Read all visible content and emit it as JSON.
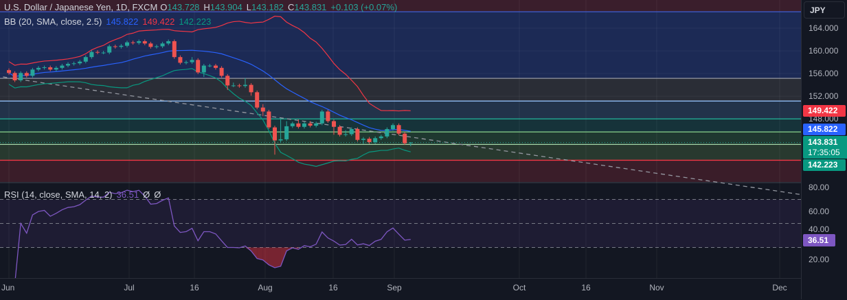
{
  "header": {
    "symbol": "U.S. Dollar / Japanese Yen, 1D, FXCM",
    "o_label": "O",
    "o": "143.728",
    "h_label": "H",
    "h": "143.904",
    "l_label": "L",
    "l": "143.182",
    "c_label": "C",
    "c": "143.831",
    "change": "+0.103 (+0.07%)"
  },
  "bb_legend": {
    "label": "BB (20, SMA, close, 2.5)",
    "basis": "145.822",
    "upper": "149.422",
    "lower": "142.223"
  },
  "rsi_legend": {
    "label": "RSI (14, close, SMA, 14, 2)",
    "value": "36.51",
    "ma1": "Ø",
    "ma2": "Ø"
  },
  "price_axis": {
    "currency": "JPY",
    "ticks": [
      "164.000",
      "160.000",
      "156.000",
      "152.000",
      "148.000"
    ],
    "tags": {
      "upper": "149.422",
      "basis": "145.822",
      "last": "143.831",
      "countdown": "17:35:05",
      "lower": "142.223"
    }
  },
  "rsi_axis": {
    "ticks": [
      "80.00",
      "60.00",
      "40.00",
      "20.00"
    ],
    "tag": "36.51"
  },
  "time_axis": {
    "ticks": [
      "Jun",
      "Jul",
      "16",
      "Aug",
      "16",
      "Sep",
      "Oct",
      "16",
      "Nov",
      "Dec"
    ]
  },
  "colors": {
    "up": "#26a69a",
    "down": "#ef5350",
    "basis": "#2962ff",
    "upper": "#f23645",
    "lower": "#089981",
    "rsi": "#7e57c2"
  },
  "chart_data": {
    "type": "candlestick",
    "title": "U.S. Dollar / Japanese Yen, 1D, FXCM",
    "ylim": [
      136.76,
      168.97
    ],
    "rsi_ylim": [
      4.6,
      84
    ],
    "rsi_levels": [
      70,
      50,
      30
    ],
    "levels": [
      {
        "price": 166.9,
        "color": "#3f5ed4"
      },
      {
        "price": 155.15,
        "color": "#9598a1"
      },
      {
        "price": 151.15,
        "color": "#90bff9"
      },
      {
        "price": 148.0,
        "color": "#22ab94"
      },
      {
        "price": 145.7,
        "color": "#81c784"
      },
      {
        "price": 143.5,
        "color": "#a5d6a7"
      },
      {
        "price": 140.7,
        "color": "#f23645"
      }
    ],
    "zones": [
      {
        "from": 166.9,
        "to": 168.97,
        "color": "#3a1e2c"
      },
      {
        "from": 155.15,
        "to": 166.9,
        "color": "#1c2a55"
      },
      {
        "from": 151.15,
        "to": 155.15,
        "color": "#2a2d36"
      },
      {
        "from": 148.0,
        "to": 151.15,
        "color": "#22334a"
      },
      {
        "from": 145.7,
        "to": 148.0,
        "color": "#16333a"
      },
      {
        "from": 143.5,
        "to": 145.7,
        "color": "#1f3830"
      },
      {
        "from": 140.7,
        "to": 143.5,
        "color": "#28392f"
      },
      {
        "from": 136.76,
        "to": 140.7,
        "color": "#3a1d29"
      }
    ],
    "trendline": {
      "start_bar": -1,
      "start_price": 155.4,
      "slope_per_bar": -0.1536,
      "color": "#9598a1"
    },
    "o": [
      156.6,
      156.1,
      154.8,
      156.1,
      155.6,
      156.7,
      157.0,
      157.1,
      156.7,
      157.0,
      157.4,
      157.7,
      157.8,
      158.1,
      158.9,
      159.8,
      159.7,
      159.7,
      160.8,
      160.7,
      160.9,
      161.5,
      161.4,
      161.7,
      161.3,
      160.7,
      160.8,
      161.3,
      161.7,
      158.9,
      157.9,
      158.0,
      158.4,
      156.2,
      157.4,
      157.4,
      157.0,
      155.6,
      153.9,
      153.9,
      153.8,
      154.0,
      152.7,
      150.0,
      149.3,
      146.5,
      144.2,
      144.4,
      146.7,
      147.2,
      146.6,
      147.2,
      146.8,
      147.2,
      149.3,
      147.6,
      146.6,
      145.2,
      145.3,
      146.2,
      144.3,
      144.5,
      143.9,
      144.6,
      144.9,
      146.2,
      146.9,
      145.4,
      143.728
    ],
    "h": [
      156.9,
      156.4,
      156.4,
      156.4,
      157.0,
      157.3,
      157.4,
      157.4,
      157.3,
      157.7,
      158.0,
      158.1,
      158.4,
      159.2,
      160.1,
      160.1,
      160.0,
      161.1,
      161.1,
      161.2,
      161.8,
      161.8,
      162.0,
      162.0,
      161.6,
      161.1,
      161.6,
      162.0,
      162.0,
      159.2,
      158.3,
      158.9,
      158.7,
      157.7,
      157.7,
      157.7,
      157.3,
      155.9,
      154.4,
      154.2,
      155.2,
      154.3,
      153.0,
      150.6,
      149.6,
      146.8,
      147.9,
      147.6,
      147.5,
      147.9,
      147.5,
      147.6,
      147.5,
      149.6,
      149.6,
      147.9,
      146.9,
      146.0,
      146.5,
      146.5,
      144.8,
      144.8,
      144.9,
      145.2,
      146.5,
      147.2,
      147.2,
      145.7,
      143.904
    ],
    "l": [
      155.8,
      154.5,
      154.5,
      155.3,
      155.3,
      156.4,
      156.7,
      156.4,
      156.4,
      156.7,
      157.1,
      157.4,
      157.5,
      157.8,
      158.6,
      159.4,
      159.4,
      159.4,
      160.4,
      160.4,
      160.6,
      161.1,
      161.1,
      161.0,
      160.4,
      160.4,
      160.5,
      161.0,
      158.6,
      157.6,
      157.6,
      157.7,
      155.9,
      155.4,
      157.1,
      156.7,
      155.3,
      153.1,
      153.6,
      153.5,
      153.5,
      152.1,
      149.7,
      148.5,
      146.2,
      141.7,
      143.9,
      144.1,
      146.4,
      146.3,
      146.3,
      146.5,
      146.5,
      146.9,
      147.3,
      145.2,
      144.9,
      144.9,
      145.0,
      144.0,
      143.6,
      143.6,
      143.6,
      144.3,
      144.6,
      145.9,
      145.1,
      143.4,
      143.182
    ],
    "c": [
      156.1,
      154.8,
      156.1,
      155.6,
      156.7,
      157.0,
      157.1,
      156.7,
      157.0,
      157.4,
      157.7,
      157.8,
      158.1,
      158.9,
      159.8,
      159.7,
      159.7,
      160.8,
      160.7,
      160.9,
      161.5,
      161.4,
      161.7,
      161.3,
      160.7,
      160.8,
      161.3,
      161.7,
      158.9,
      157.9,
      158.0,
      158.4,
      156.2,
      157.4,
      157.4,
      157.0,
      155.6,
      153.9,
      153.9,
      153.8,
      154.0,
      152.7,
      150.0,
      149.3,
      146.5,
      144.2,
      144.4,
      146.7,
      147.2,
      146.6,
      147.2,
      146.8,
      147.2,
      149.3,
      147.6,
      146.6,
      145.2,
      145.3,
      146.2,
      144.3,
      144.5,
      143.9,
      144.6,
      144.9,
      146.2,
      146.9,
      145.4,
      143.7,
      143.831
    ],
    "bb": {
      "length": 20,
      "mult": 2.5
    },
    "rsi": {
      "length": 14
    }
  }
}
